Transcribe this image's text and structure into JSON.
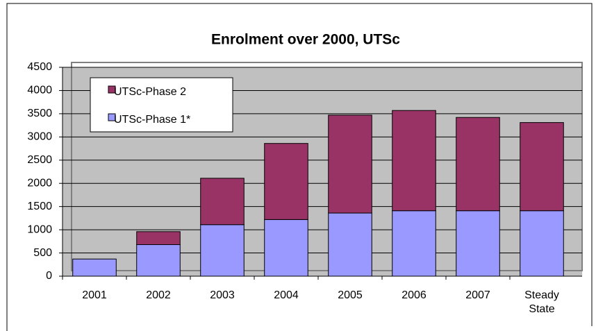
{
  "chart_data": {
    "type": "bar",
    "stacked": true,
    "title": "Enrolment over 2000, UTSc",
    "categories": [
      "2001",
      "2002",
      "2003",
      "2004",
      "2005",
      "2006",
      "2007",
      "Steady State"
    ],
    "series": [
      {
        "name": "UTSc-Phase 1*",
        "color": "#9999ff",
        "values": [
          370,
          680,
          1110,
          1220,
          1360,
          1410,
          1410,
          1410
        ]
      },
      {
        "name": "UTSc-Phase 2",
        "color": "#993366",
        "values": [
          0,
          280,
          1000,
          1640,
          2110,
          2160,
          2010,
          1900
        ]
      }
    ],
    "ylim": [
      0,
      4500
    ],
    "yticks": [
      0,
      500,
      1000,
      1500,
      2000,
      2500,
      3000,
      3500,
      4000,
      4500
    ],
    "grid": true
  }
}
